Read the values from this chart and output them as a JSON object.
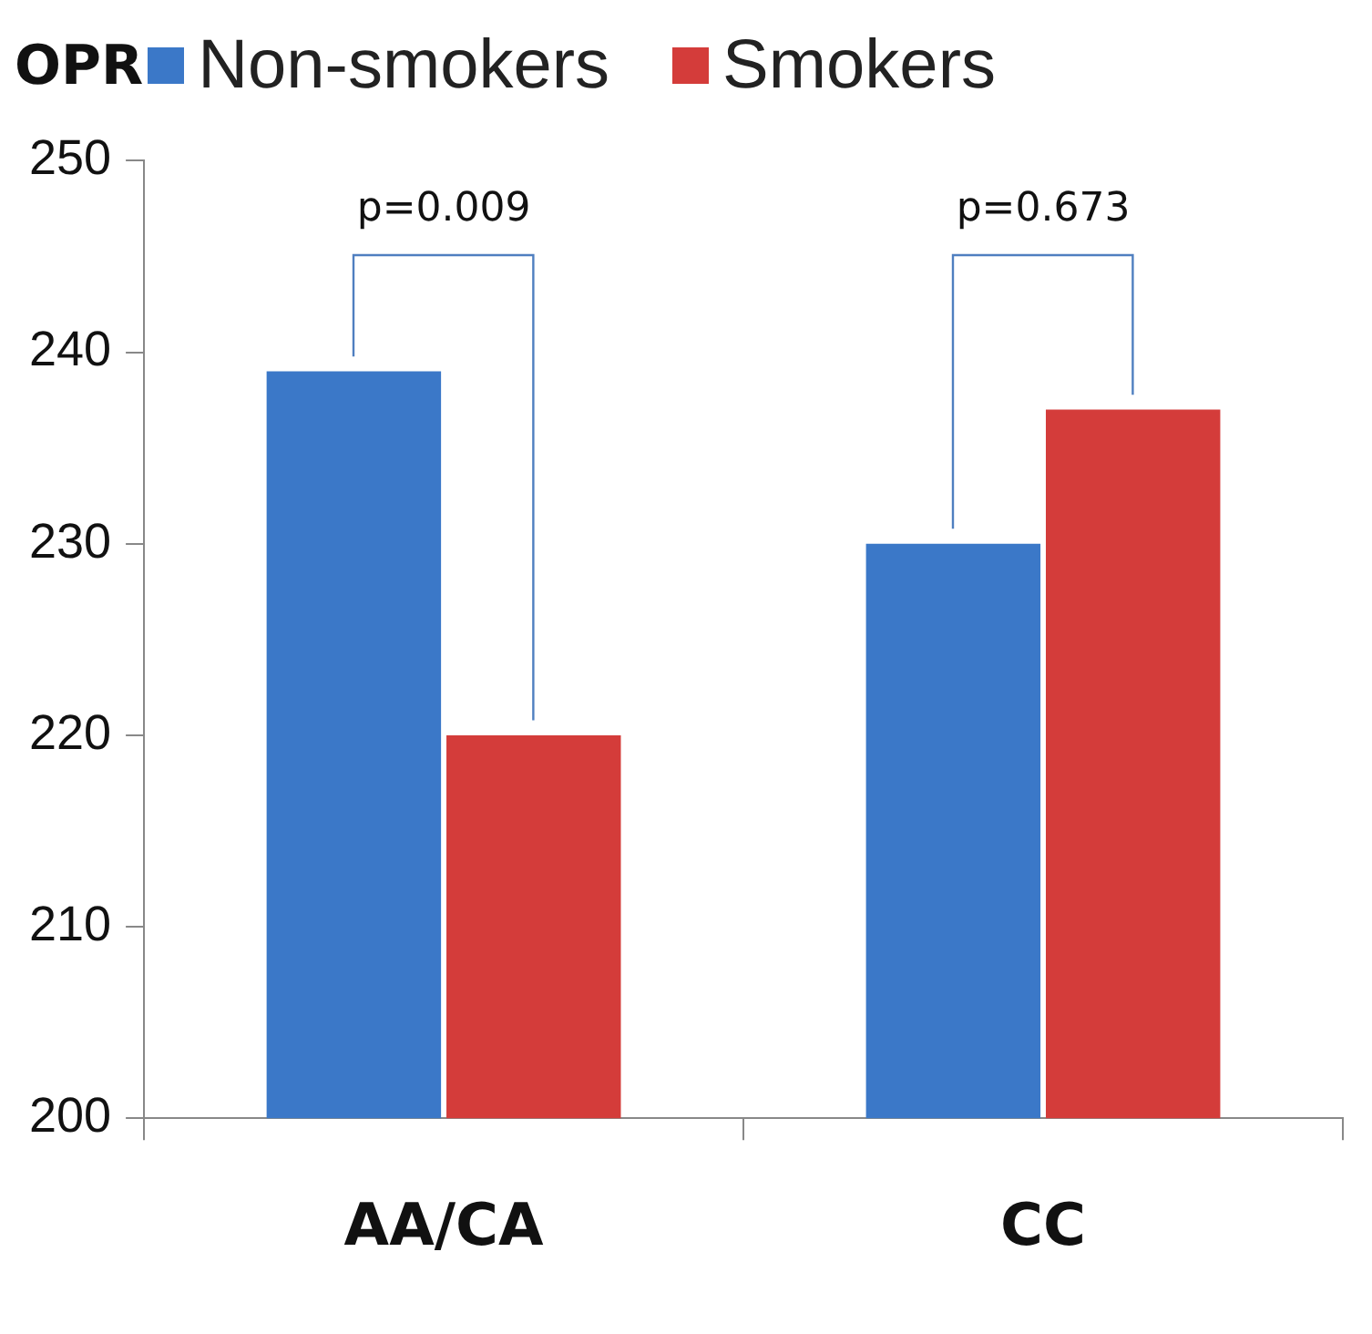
{
  "chart_data": {
    "type": "bar",
    "title": "OPR",
    "categories": [
      "AA/CA",
      "CC"
    ],
    "series": [
      {
        "name": "Non-smokers",
        "color": "#3b78c8",
        "values": [
          239,
          230
        ]
      },
      {
        "name": "Smokers",
        "color": "#d43c3a",
        "values": [
          220,
          237
        ]
      }
    ],
    "ylim": [
      200,
      250
    ],
    "yticks": [
      200,
      210,
      220,
      230,
      240,
      250
    ],
    "grid": false,
    "legend": "top",
    "annotations": [
      "p=0.009",
      "p=0.673"
    ]
  }
}
